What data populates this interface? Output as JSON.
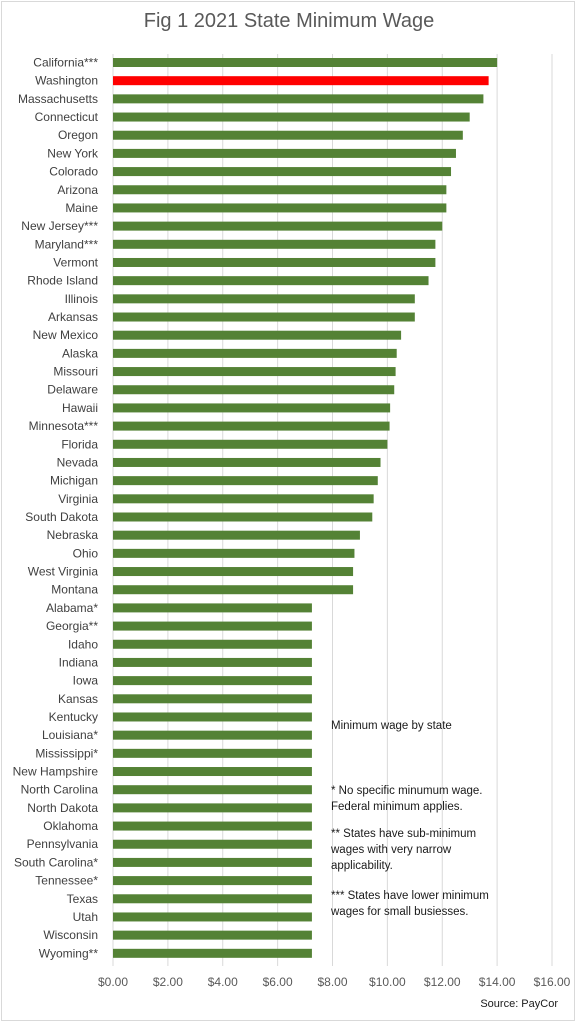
{
  "chart_data": {
    "type": "bar",
    "orientation": "horizontal",
    "title": "Fig 1 2021 State Minimum Wage",
    "categories": [
      "California***",
      "Washington",
      "Massachusetts",
      "Connecticut",
      "Oregon",
      "New York",
      "Colorado",
      "Arizona",
      "Maine",
      "New Jersey***",
      "Maryland***",
      "Vermont",
      "Rhode Island",
      "Illinois",
      "Arkansas",
      "New Mexico",
      "Alaska",
      "Missouri",
      "Delaware",
      "Hawaii",
      "Minnesota***",
      "Florida",
      "Nevada",
      "Michigan",
      "Virginia",
      "South Dakota",
      "Nebraska",
      "Ohio",
      "West Virginia",
      "Montana",
      "Alabama*",
      "Georgia**",
      "Idaho",
      "Indiana",
      "Iowa",
      "Kansas",
      "Kentucky",
      "Louisiana*",
      "Mississippi*",
      "New Hampshire",
      "North Carolina",
      "North Dakota",
      "Oklahoma",
      "Pennsylvania",
      "South Carolina*",
      "Tennessee*",
      "Texas",
      "Utah",
      "Wisconsin",
      "Wyoming**"
    ],
    "values": [
      14.0,
      13.69,
      13.5,
      13.0,
      12.75,
      12.5,
      12.32,
      12.15,
      12.15,
      12.0,
      11.75,
      11.75,
      11.5,
      11.0,
      11.0,
      10.5,
      10.34,
      10.3,
      10.25,
      10.1,
      10.08,
      10.0,
      9.75,
      9.65,
      9.5,
      9.45,
      9.0,
      8.8,
      8.75,
      8.75,
      7.25,
      7.25,
      7.25,
      7.25,
      7.25,
      7.25,
      7.25,
      7.25,
      7.25,
      7.25,
      7.25,
      7.25,
      7.25,
      7.25,
      7.25,
      7.25,
      7.25,
      7.25,
      7.25,
      7.25
    ],
    "highlight": "Washington",
    "colors": {
      "bar": "#548235",
      "highlight": "#ff0000",
      "grid": "#d9d9d9"
    },
    "xlim": [
      0,
      16
    ],
    "x_ticks": [
      "$0.00",
      "$2.00",
      "$4.00",
      "$6.00",
      "$8.00",
      "$10.00",
      "$12.00",
      "$14.00",
      "$16.00"
    ],
    "grid": true
  },
  "notes": {
    "legend_title": "Minimum  wage by state",
    "one_star": "* No specific minumum  wage.\nFederal minimum  applies.",
    "two_star": "** States have sub-minimum\nwages with very narrow\napplicability.",
    "three_star": "*** States have lower minimum\nwages for small busiesses.",
    "source": "Source: PayCor"
  }
}
